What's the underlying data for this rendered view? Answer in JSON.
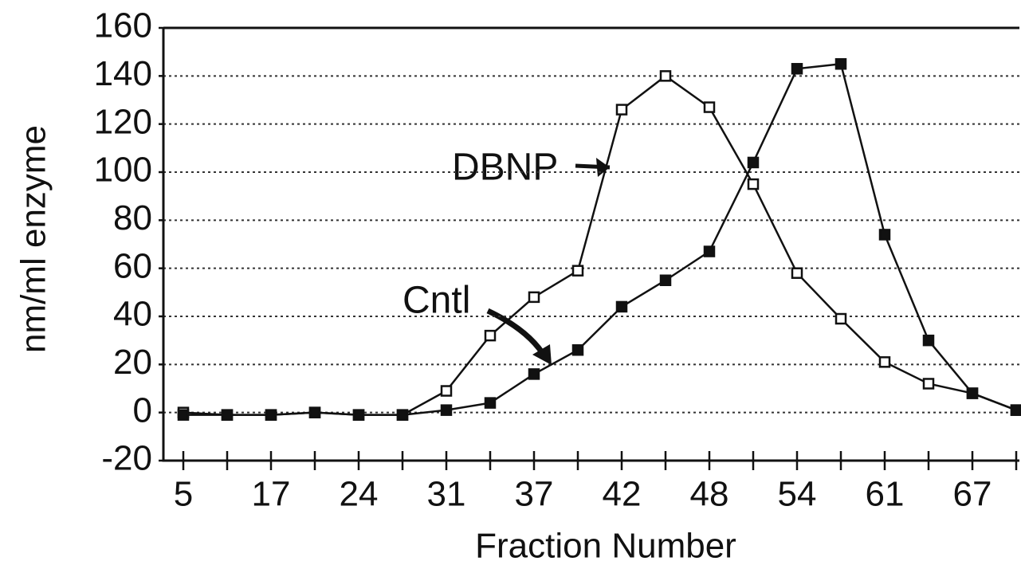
{
  "chart_data": {
    "type": "line",
    "x_label": "Fraction Number",
    "y_label": "nm/ml enzyme",
    "categories": [
      "5",
      null,
      "17",
      null,
      "24",
      null,
      "31",
      null,
      "37",
      null,
      "42",
      null,
      "48",
      null,
      "54",
      null,
      "61",
      null,
      "67",
      null
    ],
    "series": [
      {
        "name": "DBNP",
        "color": "#111111",
        "marker": "open-square",
        "values": [
          0,
          -1,
          -1,
          0,
          -1,
          -1,
          9,
          32,
          48,
          59,
          126,
          140,
          127,
          95,
          58,
          39,
          21,
          12,
          8,
          1
        ]
      },
      {
        "name": "Cntl",
        "color": "#111111",
        "marker": "filled-square",
        "values": [
          -1,
          -1,
          -1,
          0,
          -1,
          -1,
          1,
          4,
          16,
          26,
          44,
          55,
          67,
          104,
          143,
          145,
          74,
          30,
          8,
          1
        ]
      }
    ],
    "ylim": [
      -20,
      160
    ],
    "yticks": [
      -20,
      0,
      20,
      40,
      60,
      80,
      100,
      120,
      140,
      160
    ],
    "grid": true
  }
}
